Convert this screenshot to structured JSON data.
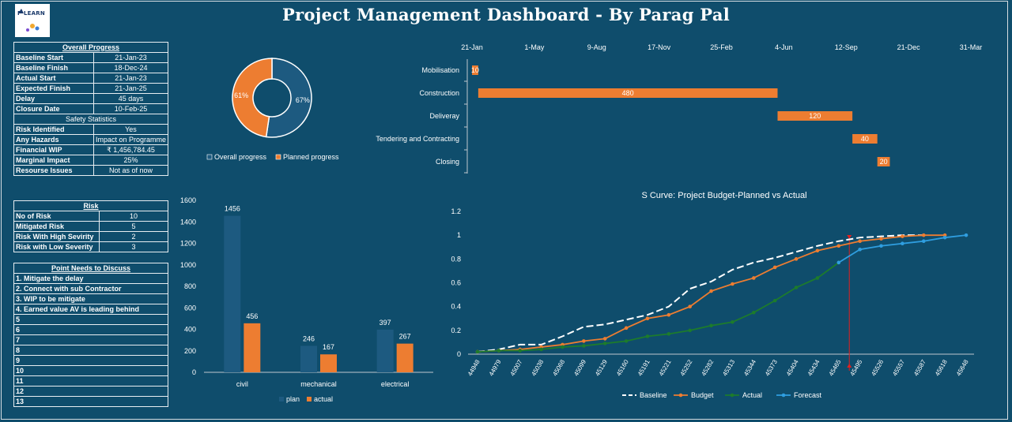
{
  "title": "Project Management Dashboard - By Parag Pal",
  "logo": {
    "text": "P LEARN",
    "icon": "mountain-logo-icon"
  },
  "overall_progress": {
    "heading": "Overall Progress",
    "rows": [
      {
        "label": "Baseline Start",
        "value": "21-Jan-23"
      },
      {
        "label": "Baseline Finish",
        "value": "18-Dec-24"
      },
      {
        "label": "Actual Start",
        "value": "21-Jan-23"
      },
      {
        "label": "Expected Finish",
        "value": "21-Jan-25"
      },
      {
        "label": "Delay",
        "value": "45 days"
      },
      {
        "label": "Closure Date",
        "value": "10-Feb-25"
      }
    ]
  },
  "safety": {
    "heading": "Safety Statistics",
    "rows": [
      {
        "label": "Risk Identified",
        "value": "Yes"
      },
      {
        "label": "Any Hazards",
        "value": "Impact on Programme"
      },
      {
        "label": "Financial WIP",
        "value": "₹ 1,456,784.45"
      },
      {
        "label": "Marginal Impact",
        "value": "25%"
      },
      {
        "label": "Resourse Issues",
        "value": "Not as of now"
      }
    ]
  },
  "risk": {
    "heading": "Risk",
    "rows": [
      {
        "label": "No of Risk",
        "value": "10"
      },
      {
        "label": "Mitigated Risk",
        "value": "5"
      },
      {
        "label": "Risk With High Sevirity",
        "value": "2"
      },
      {
        "label": "Risk with Low Severity",
        "value": "3"
      }
    ]
  },
  "points": {
    "heading": "Point Needs to Discuss",
    "rows": [
      "1. Mitigate the delay",
      "2. Connect with sub Contractor",
      "3. WIP to be mitigate",
      "4. Earned value AV is leading behind",
      "5",
      "6",
      "7",
      "8",
      "9",
      "10",
      "11",
      "12",
      "13"
    ]
  },
  "chart_data": [
    {
      "type": "pie",
      "style": "doughnut",
      "slices": [
        {
          "name": "Overall progress",
          "value": 67,
          "label": "67%",
          "color": "#1d5a80"
        },
        {
          "name": "Planned progress",
          "value": 61,
          "label": "61%",
          "color": "#ed7d31"
        }
      ],
      "legend_position": "bottom"
    },
    {
      "type": "bar",
      "orientation": "horizontal",
      "style": "gantt",
      "x_ticks": [
        "21-Jan",
        "1-May",
        "9-Aug",
        "17-Nov",
        "25-Feb",
        "4-Jun",
        "12-Sep",
        "21-Dec",
        "31-Mar"
      ],
      "x_tick_values": [
        0,
        100,
        200,
        300,
        400,
        500,
        600,
        700,
        800
      ],
      "tasks": [
        {
          "name": "Mobilisation",
          "start": 0,
          "duration": 10,
          "label": "10"
        },
        {
          "name": "Construction",
          "start": 10,
          "duration": 480,
          "label": "480"
        },
        {
          "name": "Deliveray",
          "start": 490,
          "duration": 120,
          "label": "120"
        },
        {
          "name": "Tendering and Contracting",
          "start": 610,
          "duration": 40,
          "label": "40"
        },
        {
          "name": "Closing",
          "start": 650,
          "duration": 20,
          "label": "20"
        }
      ],
      "bar_color": "#ed7d31"
    },
    {
      "type": "bar",
      "categories": [
        "civil",
        "mechanical",
        "electrical"
      ],
      "series": [
        {
          "name": "plan",
          "values": [
            1456,
            246,
            397
          ],
          "color": "#1d5a80"
        },
        {
          "name": "actual",
          "values": [
            456,
            167,
            267
          ],
          "color": "#ed7d31"
        }
      ],
      "ylim": [
        0,
        1600
      ],
      "y_ticks": [
        0,
        200,
        400,
        600,
        800,
        1000,
        1200,
        1400,
        1600
      ],
      "legend_position": "bottom"
    },
    {
      "type": "line",
      "title": "S Curve: Project Budget-Planned vs Actual",
      "x": [
        "44948",
        "44979",
        "45007",
        "45038",
        "45068",
        "45099",
        "45129",
        "45160",
        "45191",
        "45221",
        "45252",
        "45282",
        "45313",
        "45344",
        "45373",
        "45404",
        "45434",
        "45465",
        "45495",
        "45526",
        "45557",
        "45587",
        "45618",
        "45648"
      ],
      "ylim": [
        0,
        1.2
      ],
      "y_ticks": [
        0,
        0.2,
        0.4,
        0.6,
        0.8,
        1,
        1.2
      ],
      "y_tick_labels": [
        "0",
        "0.2",
        "0.4",
        "0.6",
        "0.8",
        "1",
        "1.2"
      ],
      "marker_x_index": 17.5,
      "series": [
        {
          "name": "Baseline",
          "color": "#ffffff",
          "dash": true,
          "values": [
            0.02,
            0.04,
            0.08,
            0.08,
            0.15,
            0.23,
            0.25,
            0.29,
            0.33,
            0.4,
            0.55,
            0.61,
            0.71,
            0.77,
            0.81,
            0.86,
            0.91,
            0.95,
            0.98,
            0.99,
            1.0,
            1.0,
            null,
            null
          ]
        },
        {
          "name": "Budget",
          "color": "#ed7d31",
          "values": [
            0.02,
            0.03,
            0.04,
            0.06,
            0.08,
            0.11,
            0.13,
            0.22,
            0.3,
            0.33,
            0.4,
            0.53,
            0.59,
            0.64,
            0.73,
            0.8,
            0.87,
            0.91,
            0.95,
            0.97,
            0.99,
            1.0,
            1.0,
            null
          ]
        },
        {
          "name": "Actual",
          "color": "#1d7b2c",
          "values": [
            0.02,
            0.03,
            0.03,
            0.04,
            0.06,
            0.07,
            0.09,
            0.11,
            0.15,
            0.17,
            0.2,
            0.24,
            0.27,
            0.35,
            0.45,
            0.56,
            0.64,
            0.77,
            null,
            null,
            null,
            null,
            null,
            null
          ]
        },
        {
          "name": "Forecast",
          "color": "#2f9ee0",
          "values": [
            null,
            null,
            null,
            null,
            null,
            null,
            null,
            null,
            null,
            null,
            null,
            null,
            null,
            null,
            null,
            null,
            null,
            0.77,
            0.88,
            0.91,
            0.93,
            0.95,
            0.98,
            1.0
          ]
        }
      ],
      "legend_position": "bottom"
    }
  ]
}
